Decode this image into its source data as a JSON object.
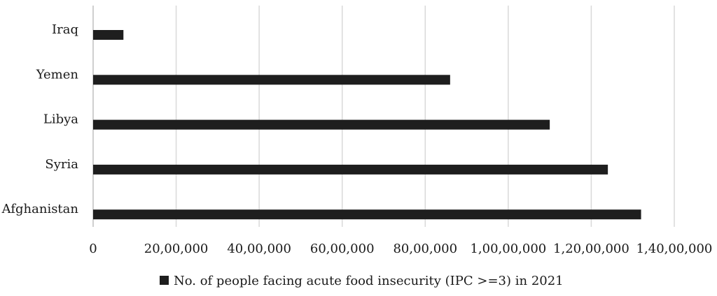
{
  "chart_data": {
    "type": "bar",
    "orientation": "horizontal",
    "categories": [
      "Iraq",
      "Yemen",
      "Libya",
      "Syria",
      "Afghanistan"
    ],
    "series": [
      {
        "name": "No. of people facing acute food insecurity (IPC >=3) in 2021",
        "values": [
          730000,
          8600000,
          11000000,
          12400000,
          13200000
        ]
      }
    ],
    "xlim": [
      0,
      14000000
    ],
    "x_ticks": [
      0,
      2000000,
      4000000,
      6000000,
      8000000,
      10000000,
      12000000,
      14000000
    ],
    "x_tick_labels": [
      "0",
      "20,00,000",
      "40,00,000",
      "60,00,000",
      "80,00,000",
      "1,00,00,000",
      "1,20,00,000",
      "1,40,00,000"
    ],
    "grid": true,
    "legend_position": "bottom",
    "bar_color": "#1e1e1e"
  }
}
